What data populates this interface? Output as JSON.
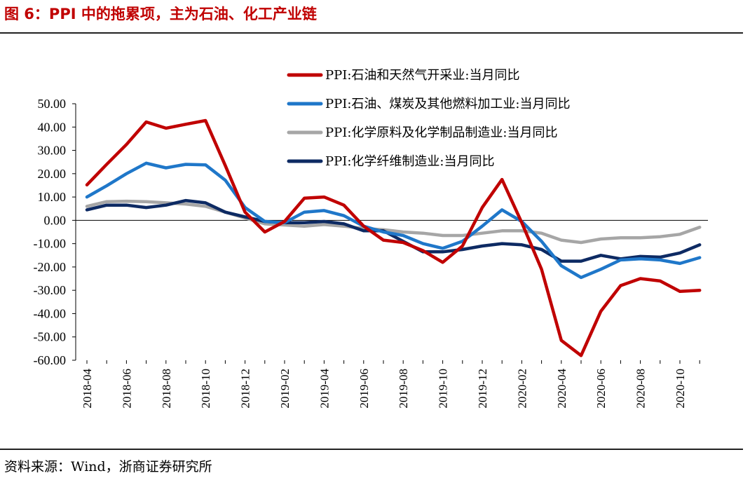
{
  "header": {
    "title": "图 6：PPI 中的拖累项，主为石油、化工产业链"
  },
  "footer": {
    "source": "资料来源：Wind，浙商证券研究所"
  },
  "chart_data": {
    "type": "line",
    "title": "图 6：PPI 中的拖累项，主为石油、化工产业链",
    "xlabel": "",
    "ylabel": "",
    "ylim": [
      -60,
      50
    ],
    "y_ticks": [
      "50.00",
      "40.00",
      "30.00",
      "20.00",
      "10.00",
      "0.00",
      "-10.00",
      "-20.00",
      "-30.00",
      "-40.00",
      "-50.00",
      "-60.00"
    ],
    "x_tick_labels": [
      "2018-04",
      "2018-06",
      "2018-08",
      "2018-10",
      "2018-12",
      "2019-02",
      "2019-04",
      "2019-06",
      "2019-08",
      "2019-10",
      "2019-12",
      "2020-02",
      "2020-04",
      "2020-06",
      "2020-08",
      "2020-10"
    ],
    "legend_position": "top-right",
    "x": [
      "2018-04",
      "2018-05",
      "2018-06",
      "2018-07",
      "2018-08",
      "2018-09",
      "2018-10",
      "2018-11",
      "2018-12",
      "2019-01",
      "2019-02",
      "2019-03",
      "2019-04",
      "2019-05",
      "2019-06",
      "2019-07",
      "2019-08",
      "2019-09",
      "2019-10",
      "2019-11",
      "2019-12",
      "2020-01",
      "2020-02",
      "2020-03",
      "2020-04",
      "2020-05",
      "2020-06",
      "2020-07",
      "2020-08",
      "2020-09",
      "2020-10",
      "2020-11"
    ],
    "series": [
      {
        "name": "PPI:石油和天然气开采业:当月同比",
        "color": "#c00000",
        "values": [
          15.2,
          24.0,
          32.5,
          42.2,
          39.5,
          41.2,
          42.8,
          23.5,
          3.5,
          -5.0,
          -0.5,
          9.5,
          10.0,
          6.5,
          -2.5,
          -8.5,
          -9.5,
          -13.0,
          -18.0,
          -11.0,
          5.5,
          17.5,
          -1.0,
          -21.0,
          -51.5,
          -58.0,
          -39.0,
          -28.0,
          -25.0,
          -26.0,
          -30.5,
          -30.0
        ]
      },
      {
        "name": "PPI:石油、煤炭及其他燃料加工业:当月同比",
        "color": "#1f77c9",
        "values": [
          10.0,
          14.8,
          20.0,
          24.5,
          22.5,
          24.0,
          23.8,
          17.2,
          5.5,
          -0.5,
          -1.0,
          3.5,
          4.2,
          2.0,
          -2.5,
          -5.0,
          -6.5,
          -10.0,
          -12.0,
          -9.0,
          -2.5,
          4.5,
          -0.5,
          -9.0,
          -19.5,
          -24.5,
          -21.0,
          -17.0,
          -16.5,
          -17.0,
          -18.5,
          -16.0
        ]
      },
      {
        "name": "PPI:化学原料及化学制品制造业:当月同比",
        "color": "#a6a6a6",
        "values": [
          6.0,
          8.0,
          8.2,
          8.0,
          7.5,
          7.0,
          6.0,
          3.5,
          1.0,
          -1.5,
          -2.0,
          -2.5,
          -1.8,
          -2.5,
          -3.5,
          -4.0,
          -5.0,
          -5.5,
          -6.5,
          -6.5,
          -5.5,
          -4.5,
          -4.5,
          -5.5,
          -8.5,
          -9.5,
          -8.0,
          -7.5,
          -7.5,
          -7.0,
          -6.0,
          -3.0
        ]
      },
      {
        "name": "PPI:化学纤维制造业:当月同比",
        "color": "#0d2a63",
        "values": [
          4.5,
          6.5,
          6.5,
          5.5,
          6.5,
          8.5,
          7.5,
          3.5,
          1.5,
          -0.5,
          -1.0,
          -1.0,
          -0.5,
          -1.5,
          -4.5,
          -4.5,
          -9.0,
          -13.5,
          -13.5,
          -12.5,
          -11.0,
          -10.0,
          -10.5,
          -12.5,
          -17.5,
          -17.5,
          -15.0,
          -16.5,
          -15.5,
          -15.8,
          -14.0,
          -10.5
        ]
      }
    ]
  }
}
